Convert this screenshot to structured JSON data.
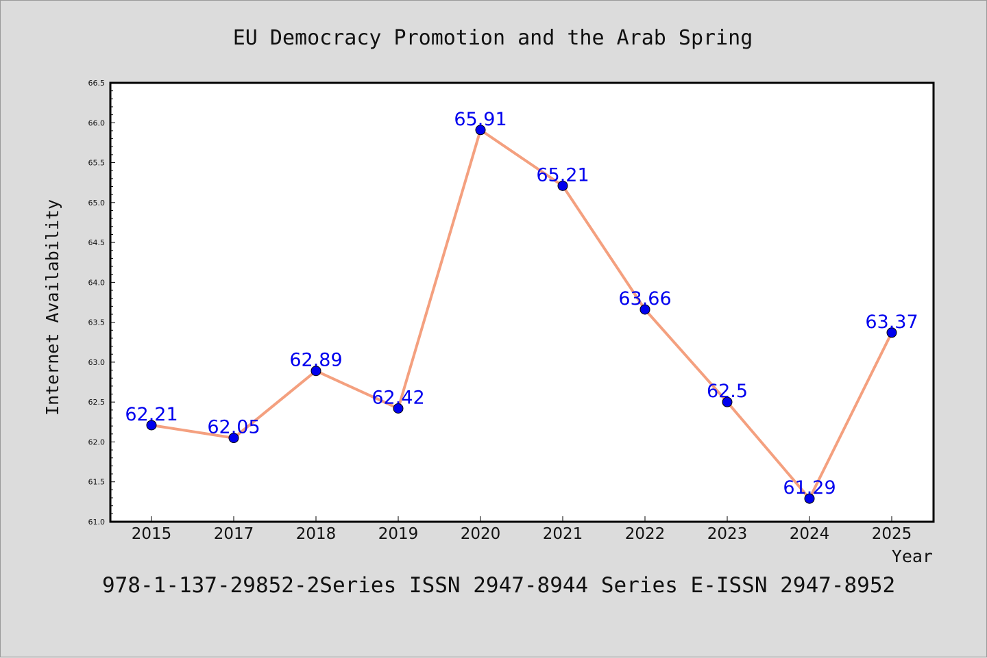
{
  "chart_data": {
    "type": "line",
    "title": "EU Democracy Promotion and the Arab Spring",
    "xlabel": "Year",
    "ylabel": "Internet Availability",
    "footer": "978-1-137-29852-2Series ISSN 2947-8944 Series E-ISSN 2947-8952",
    "categories": [
      "2015",
      "2017",
      "2018",
      "2019",
      "2020",
      "2021",
      "2022",
      "2023",
      "2024",
      "2025"
    ],
    "series": [
      {
        "values": [
          62.21,
          62.05,
          62.89,
          62.42,
          65.91,
          65.21,
          63.66,
          62.5,
          61.29,
          63.37
        ],
        "labels": [
          "62.21",
          "62.05",
          "62.89",
          "62.42",
          "65.91",
          "65.21",
          "63.66",
          "62.5",
          "61.29",
          "63.37"
        ]
      }
    ],
    "ylim": [
      61.0,
      66.5
    ],
    "yticks": [
      "61.0",
      "61.5",
      "62.0",
      "62.5",
      "63.0",
      "63.5",
      "64.0",
      "64.5",
      "65.0",
      "65.5",
      "66.0",
      "66.5"
    ],
    "grid": false,
    "line_color": "#f4a07f",
    "marker_color": "#0000ee",
    "label_color": "#0000ee",
    "background_color": "#dcdcdc",
    "plot_background": "#ffffff"
  }
}
